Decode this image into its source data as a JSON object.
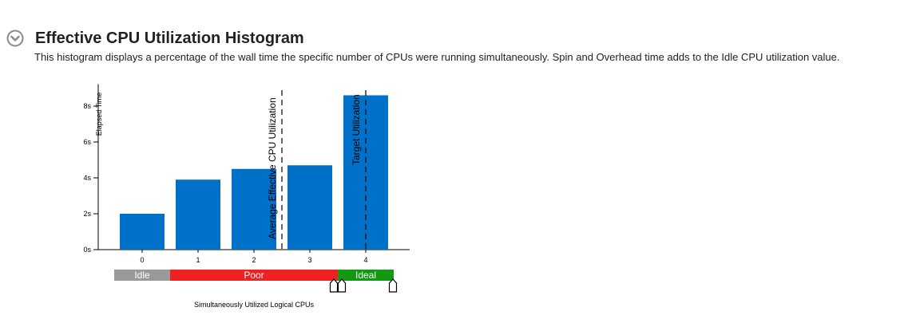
{
  "section": {
    "title": "Effective CPU Utilization Histogram",
    "description": "This histogram displays a percentage of the wall time the specific number of CPUs were running simultaneously. Spin and Overhead time adds to the Idle CPU utilization value.",
    "toggle_icon": "chevron-down-circle-icon"
  },
  "chart_data": {
    "type": "bar",
    "ylabel": "Elapsed Time",
    "xlabel": "Simultaneously Utilized Logical CPUs",
    "categories": [
      "0",
      "1",
      "2",
      "3",
      "4"
    ],
    "values": [
      2.0,
      3.9,
      4.5,
      4.7,
      8.6
    ],
    "ylim": [
      0,
      9
    ],
    "yticks": [
      0,
      2,
      4,
      6,
      8
    ],
    "ytick_labels": [
      "0s",
      "2s",
      "4s",
      "6s",
      "8s"
    ],
    "bar_color": "#0070c8",
    "reference_lines": [
      {
        "label": "Average Effective CPU Utilization",
        "x": 2.5,
        "style": "dashed"
      },
      {
        "label": "Target Utilization",
        "x": 4,
        "style": "dashed"
      }
    ],
    "utilization_bands": [
      {
        "label": "Idle",
        "from": -0.5,
        "to": 0.5,
        "color": "#999999"
      },
      {
        "label": "Poor",
        "from": 0.5,
        "to": 3.5,
        "color": "#ee2222"
      },
      {
        "label": "Ideal",
        "from": 3.5,
        "to": 4.5,
        "color": "#119911"
      }
    ],
    "threshold_markers": [
      3.45,
      3.55,
      4.5
    ],
    "grid": false,
    "legend": "none"
  }
}
